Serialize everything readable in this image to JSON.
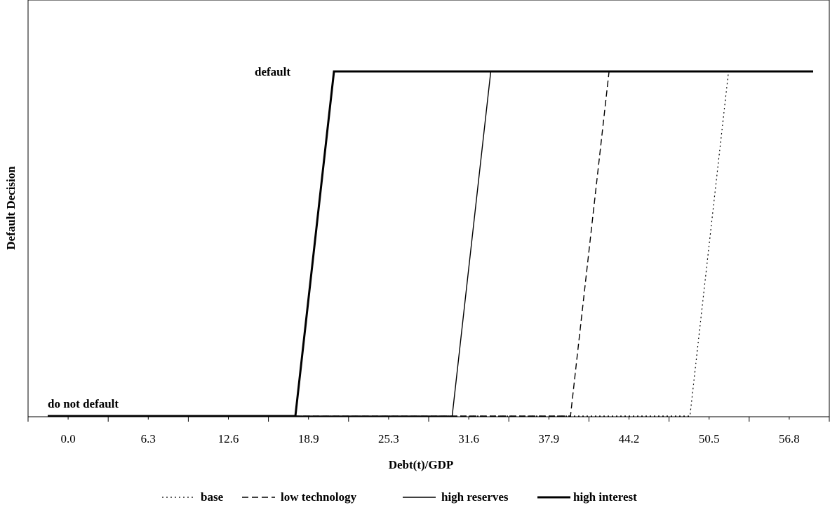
{
  "chart_data": {
    "type": "line",
    "title": "",
    "xlabel": "Debt(t)/GDP",
    "ylabel": "Default Decision",
    "xlim": [
      0,
      61.5
    ],
    "ylim": [
      0,
      1
    ],
    "x_ticks": [
      "0.0",
      "6.3",
      "12.6",
      "18.9",
      "25.3",
      "31.6",
      "37.9",
      "44.2",
      "50.5",
      "56.8"
    ],
    "annotations": {
      "top": "default",
      "bottom": "do not default"
    },
    "legend": {
      "position": "bottom"
    },
    "grid": false,
    "series": [
      {
        "name": "base",
        "style": "dotted",
        "width": 1.2,
        "points": [
          [
            0,
            0
          ],
          [
            51.6,
            0
          ],
          [
            54.7,
            1
          ],
          [
            61.5,
            1
          ]
        ]
      },
      {
        "name": "low technology",
        "style": "dashed",
        "width": 1.4,
        "points": [
          [
            0,
            0
          ],
          [
            42.0,
            0
          ],
          [
            45.1,
            1
          ],
          [
            61.5,
            1
          ]
        ]
      },
      {
        "name": "high reserves",
        "style": "solid",
        "width": 1.4,
        "points": [
          [
            0,
            0
          ],
          [
            32.5,
            0
          ],
          [
            35.6,
            1
          ],
          [
            61.5,
            1
          ]
        ]
      },
      {
        "name": "high interest",
        "style": "solid",
        "width": 3,
        "points": [
          [
            0,
            0
          ],
          [
            19.9,
            0
          ],
          [
            23.0,
            1
          ],
          [
            61.5,
            1
          ]
        ]
      }
    ]
  }
}
